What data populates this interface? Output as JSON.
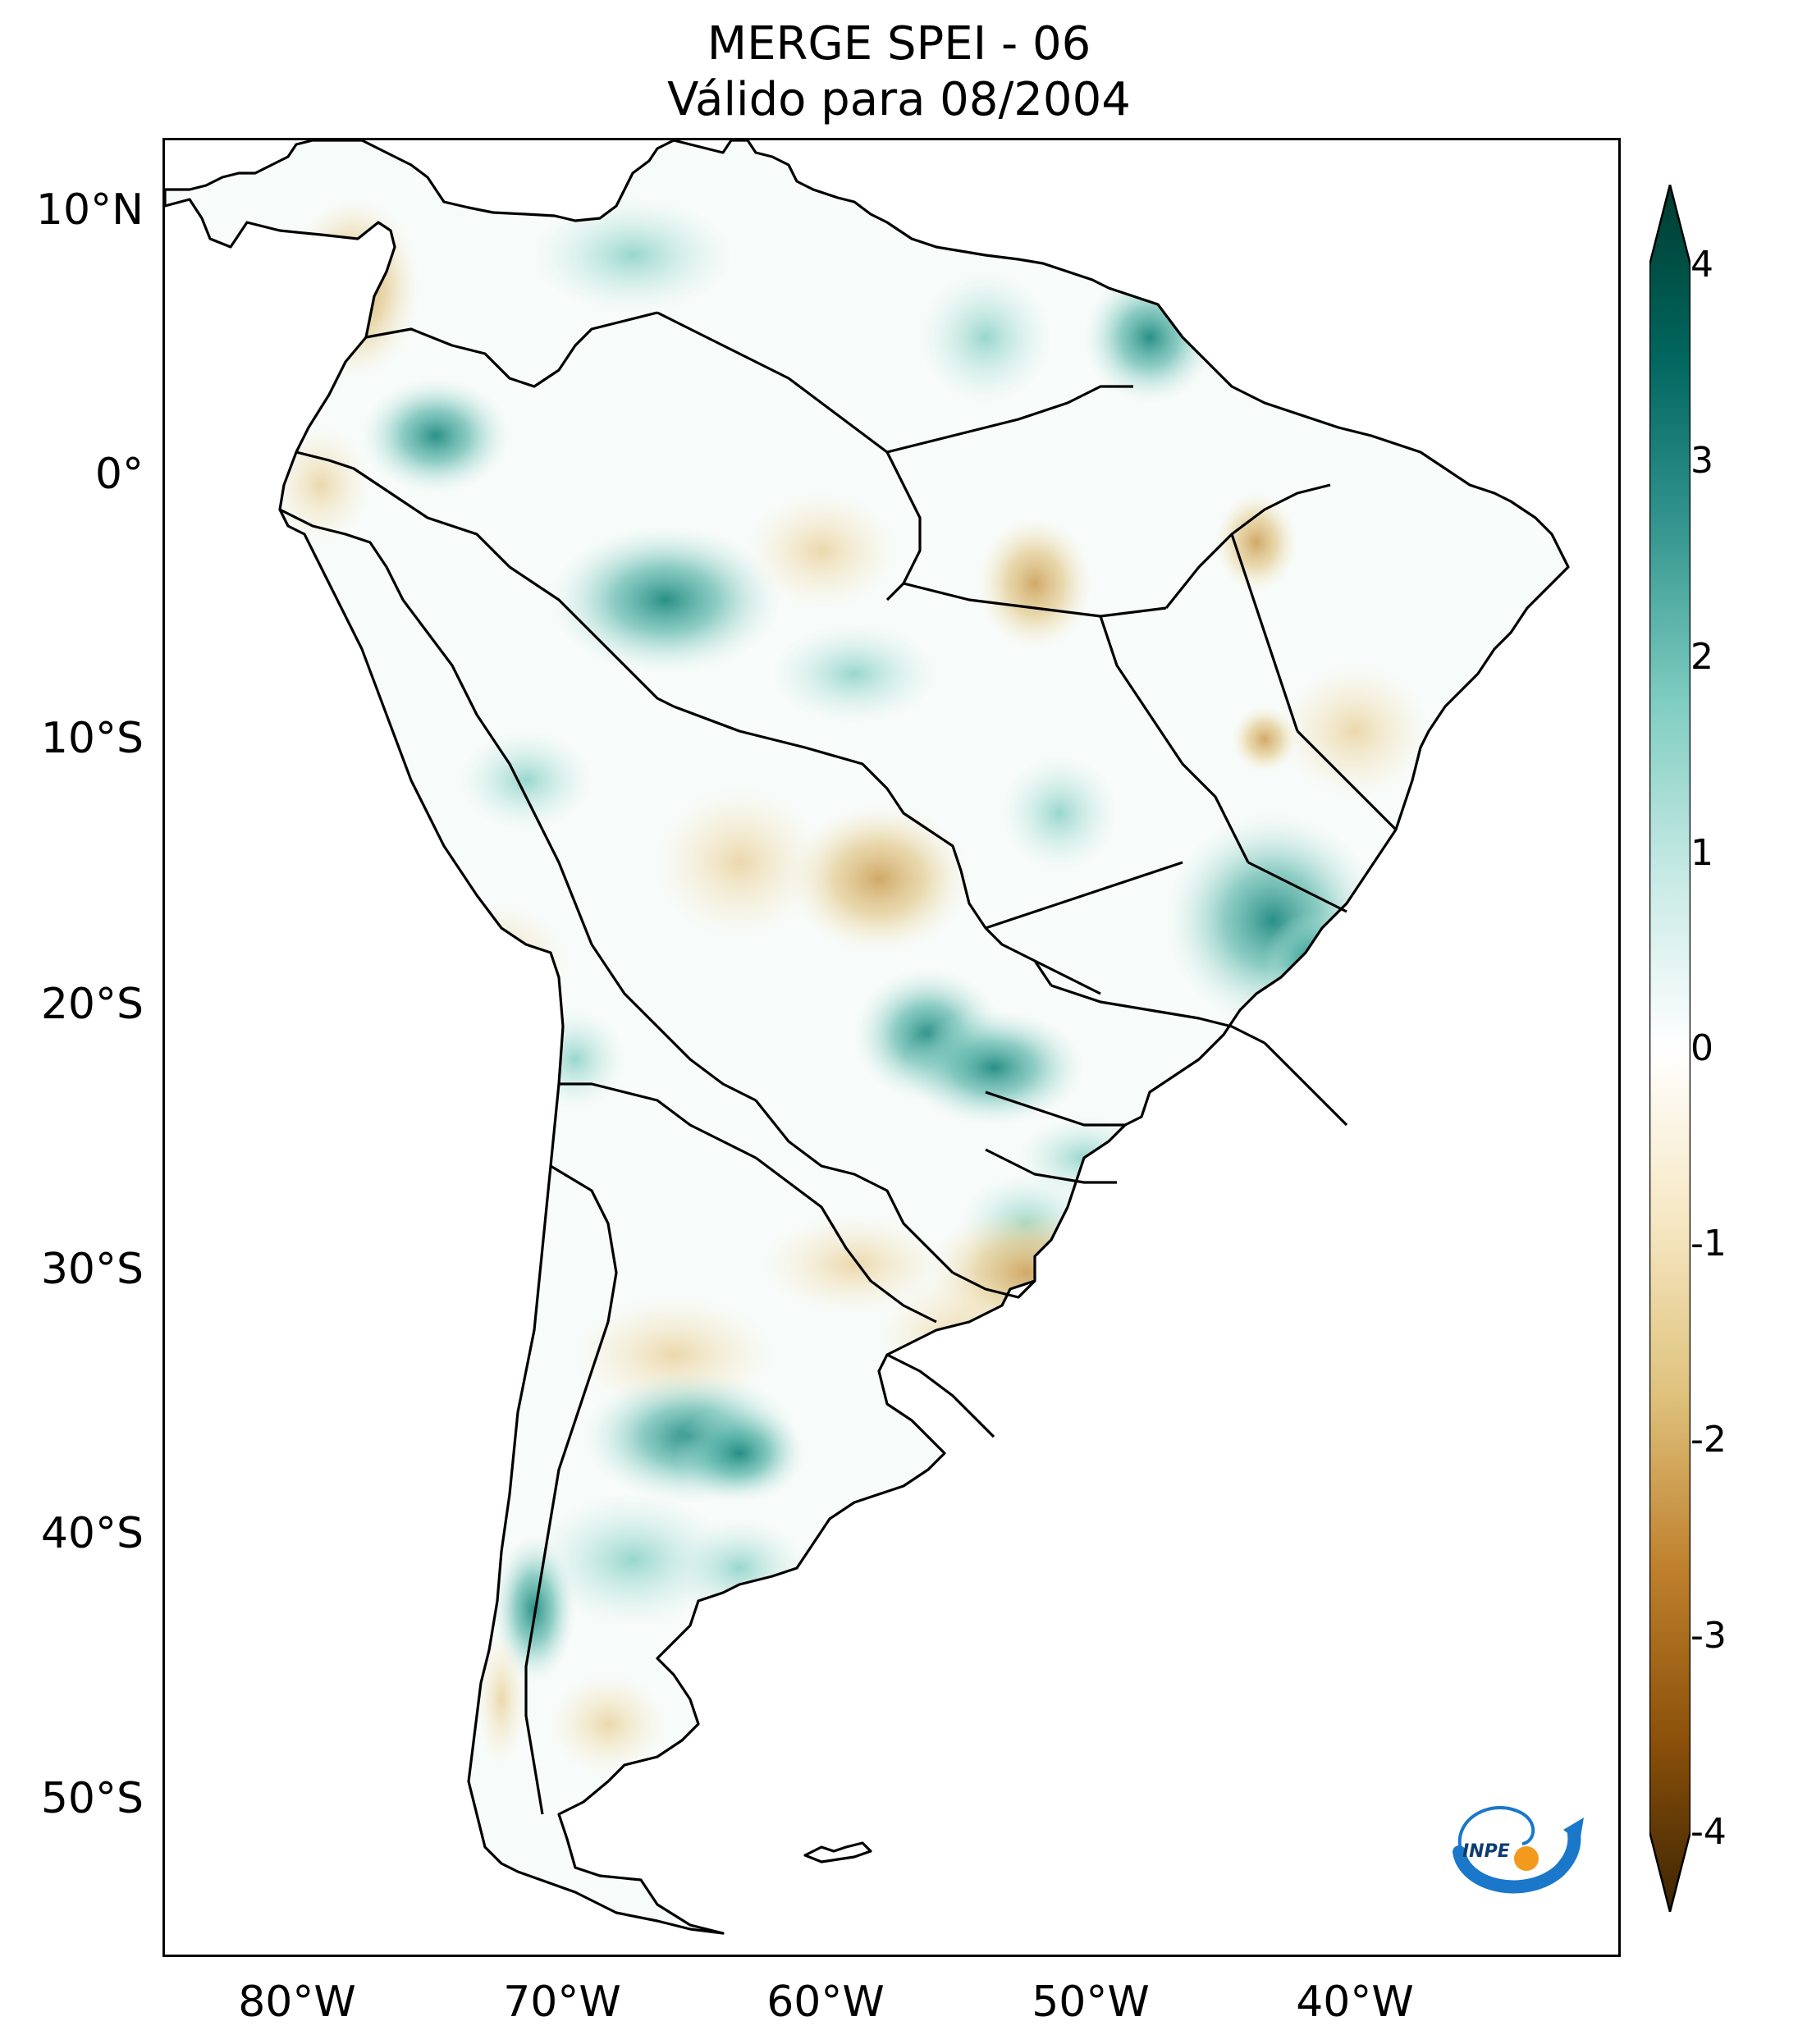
{
  "title": {
    "line1": "MERGE   SPEI - 06",
    "line2": "Válido para 08/2004"
  },
  "axes": {
    "latitude_labels": [
      "10°N",
      "0°",
      "10°S",
      "20°S",
      "30°S",
      "40°S",
      "50°S"
    ],
    "longitude_labels": [
      "80°W",
      "70°W",
      "60°W",
      "50°W",
      "40°W"
    ]
  },
  "colorbar": {
    "ticks": [
      "4",
      "3",
      "2",
      "1",
      "0",
      "-1",
      "-2",
      "-3",
      "-4"
    ],
    "range": [
      -4,
      4
    ],
    "extend": "both",
    "colormap": "BrBG",
    "colors": [
      "#3d2403",
      "#8c510a",
      "#bf812d",
      "#dfc27d",
      "#f6e8c3",
      "#ffffff",
      "#c7eae5",
      "#80cdc1",
      "#35978f",
      "#01665e",
      "#003c30"
    ]
  },
  "logo": {
    "text": "INPE",
    "colors": {
      "blue": "#1a77c9",
      "orange": "#f39a1e"
    }
  },
  "map": {
    "region": "South America",
    "variable": "SPEI - 06",
    "lon_range": [
      -85,
      -30
    ],
    "lat_range": [
      -56,
      12.5
    ]
  }
}
